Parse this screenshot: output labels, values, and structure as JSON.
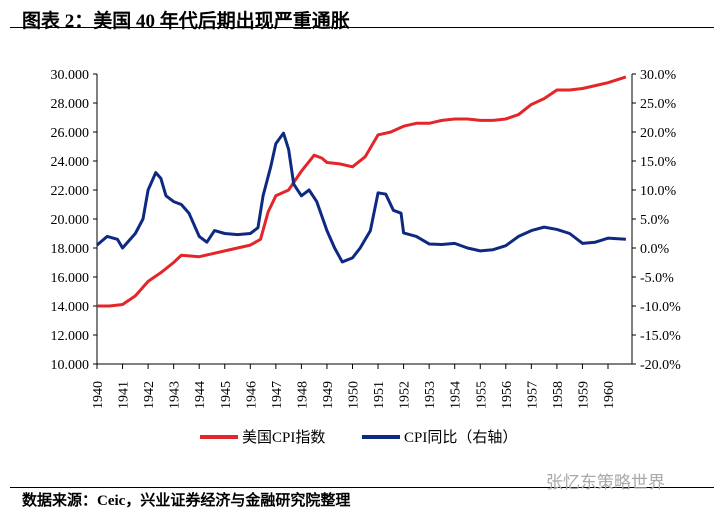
{
  "title": "图表 2：美国 40 年代后期出现严重通胀",
  "source": "数据来源：Ceic，兴业证券经济与金融研究院整理",
  "watermark": "张忆东策略世界",
  "colors": {
    "cpi": "#e3262a",
    "yoy": "#0d2a80"
  },
  "chart_data": {
    "type": "line",
    "title": "美国 40 年代后期出现严重通胀",
    "x_ticks": [
      "1940",
      "1941",
      "1942",
      "1943",
      "1944",
      "1945",
      "1946",
      "1947",
      "1948",
      "1949",
      "1950",
      "1951",
      "1952",
      "1953",
      "1954",
      "1955",
      "1956",
      "1957",
      "1958",
      "1959",
      "1960"
    ],
    "y_left": {
      "range": [
        10,
        30
      ],
      "ticks": [
        "10.000",
        "12.000",
        "14.000",
        "16.000",
        "18.000",
        "20.000",
        "22.000",
        "24.000",
        "26.000",
        "28.000",
        "30.000"
      ]
    },
    "y_right": {
      "range": [
        -20,
        30
      ],
      "ticks": [
        "-20.0%",
        "-15.0%",
        "-10.0%",
        "-5.0%",
        "0.0%",
        "5.0%",
        "10.0%",
        "15.0%",
        "20.0%",
        "25.0%",
        "30.0%"
      ]
    },
    "series": [
      {
        "name": "美国CPI指数",
        "axis": "left",
        "points": [
          [
            1940,
            14.0
          ],
          [
            1940.5,
            14.0
          ],
          [
            1941,
            14.1
          ],
          [
            1941.5,
            14.7
          ],
          [
            1942,
            15.7
          ],
          [
            1942.5,
            16.3
          ],
          [
            1943,
            17.0
          ],
          [
            1943.3,
            17.5
          ],
          [
            1944,
            17.4
          ],
          [
            1944.5,
            17.6
          ],
          [
            1945,
            17.8
          ],
          [
            1945.5,
            18.0
          ],
          [
            1946,
            18.2
          ],
          [
            1946.4,
            18.6
          ],
          [
            1946.7,
            20.5
          ],
          [
            1947,
            21.6
          ],
          [
            1947.5,
            22.0
          ],
          [
            1948,
            23.3
          ],
          [
            1948.5,
            24.4
          ],
          [
            1948.8,
            24.2
          ],
          [
            1949,
            23.9
          ],
          [
            1949.5,
            23.8
          ],
          [
            1950,
            23.6
          ],
          [
            1950.5,
            24.3
          ],
          [
            1951,
            25.8
          ],
          [
            1951.5,
            26.0
          ],
          [
            1952,
            26.4
          ],
          [
            1952.5,
            26.6
          ],
          [
            1953,
            26.6
          ],
          [
            1953.5,
            26.8
          ],
          [
            1954,
            26.9
          ],
          [
            1954.5,
            26.9
          ],
          [
            1955,
            26.8
          ],
          [
            1955.5,
            26.8
          ],
          [
            1956,
            26.9
          ],
          [
            1956.5,
            27.2
          ],
          [
            1957,
            27.9
          ],
          [
            1957.5,
            28.3
          ],
          [
            1958,
            28.9
          ],
          [
            1958.5,
            28.9
          ],
          [
            1959,
            29.0
          ],
          [
            1959.5,
            29.2
          ],
          [
            1960,
            29.4
          ],
          [
            1960.7,
            29.8
          ]
        ]
      },
      {
        "name": "CPI同比（右轴）",
        "axis": "right",
        "points": [
          [
            1940,
            0.5
          ],
          [
            1940.4,
            2
          ],
          [
            1940.8,
            1.5
          ],
          [
            1941,
            0
          ],
          [
            1941.5,
            2.5
          ],
          [
            1941.8,
            5
          ],
          [
            1942,
            10
          ],
          [
            1942.3,
            13
          ],
          [
            1942.5,
            12
          ],
          [
            1942.7,
            9
          ],
          [
            1943,
            8
          ],
          [
            1943.3,
            7.5
          ],
          [
            1943.6,
            6
          ],
          [
            1944,
            2
          ],
          [
            1944.3,
            1
          ],
          [
            1944.6,
            3
          ],
          [
            1945,
            2.5
          ],
          [
            1945.5,
            2.3
          ],
          [
            1946,
            2.5
          ],
          [
            1946.3,
            3.5
          ],
          [
            1946.5,
            9
          ],
          [
            1946.8,
            14
          ],
          [
            1947,
            18
          ],
          [
            1947.3,
            19.8
          ],
          [
            1947.5,
            17
          ],
          [
            1947.7,
            11
          ],
          [
            1948,
            9
          ],
          [
            1948.3,
            10
          ],
          [
            1948.6,
            8
          ],
          [
            1949,
            3
          ],
          [
            1949.3,
            0
          ],
          [
            1949.6,
            -2.4
          ],
          [
            1950,
            -1.7
          ],
          [
            1950.3,
            0
          ],
          [
            1950.7,
            3
          ],
          [
            1951,
            9.5
          ],
          [
            1951.3,
            9.3
          ],
          [
            1951.6,
            6.5
          ],
          [
            1951.9,
            6
          ],
          [
            1952,
            2.6
          ],
          [
            1952.5,
            2
          ],
          [
            1953,
            0.7
          ],
          [
            1953.5,
            0.6
          ],
          [
            1954,
            0.8
          ],
          [
            1954.5,
            0
          ],
          [
            1955,
            -0.5
          ],
          [
            1955.5,
            -0.3
          ],
          [
            1956,
            0.4
          ],
          [
            1956.5,
            2
          ],
          [
            1957,
            3
          ],
          [
            1957.5,
            3.6
          ],
          [
            1958,
            3.2
          ],
          [
            1958.5,
            2.5
          ],
          [
            1959,
            0.8
          ],
          [
            1959.5,
            1
          ],
          [
            1960,
            1.7
          ],
          [
            1960.7,
            1.5
          ]
        ]
      }
    ]
  }
}
